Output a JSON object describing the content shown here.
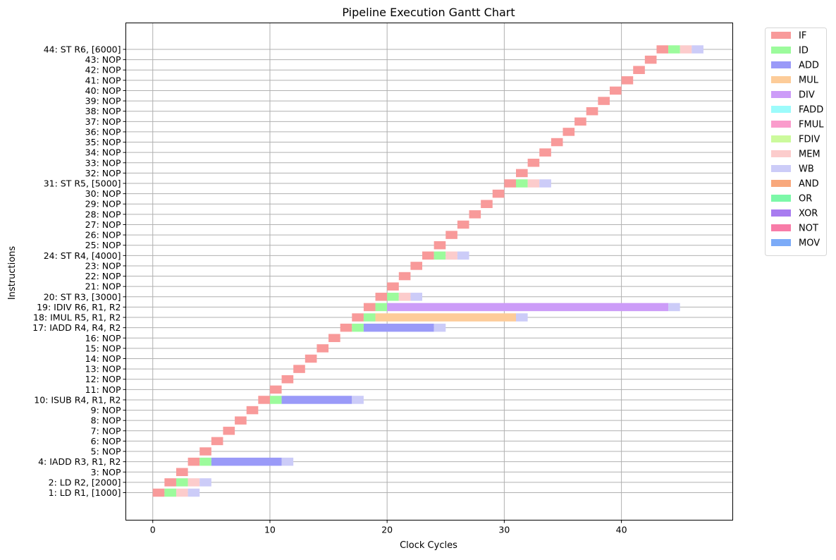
{
  "chart_data": {
    "type": "gantt",
    "title": "Pipeline Execution Gantt Chart",
    "xlabel": "Clock Cycles",
    "ylabel": "Instructions",
    "xlim": [
      -2.3,
      49.5
    ],
    "xticks": [
      0,
      10,
      20,
      30,
      40
    ],
    "grid": true,
    "legend_position": "outside-top-right",
    "stages": [
      {
        "name": "IF",
        "color": "#f89a9a"
      },
      {
        "name": "ID",
        "color": "#9cfb9c"
      },
      {
        "name": "ADD",
        "color": "#9a9af8"
      },
      {
        "name": "MUL",
        "color": "#fdcc99"
      },
      {
        "name": "DIV",
        "color": "#cc9cf8"
      },
      {
        "name": "FADD",
        "color": "#9cfbfb"
      },
      {
        "name": "FMUL",
        "color": "#fa9ccc"
      },
      {
        "name": "FDIV",
        "color": "#ccfa9c"
      },
      {
        "name": "MEM",
        "color": "#fccccc"
      },
      {
        "name": "WB",
        "color": "#ccccf8"
      },
      {
        "name": "AND",
        "color": "#f8a87c"
      },
      {
        "name": "OR",
        "color": "#7cf8a8"
      },
      {
        "name": "XOR",
        "color": "#a87cf0"
      },
      {
        "name": "NOT",
        "color": "#f87ca8"
      },
      {
        "name": "MOV",
        "color": "#7cabf8"
      }
    ],
    "instructions": [
      {
        "label": "1: LD R1, [1000]",
        "segments": [
          [
            "IF",
            0,
            1
          ],
          [
            "ID",
            1,
            2
          ],
          [
            "MEM",
            2,
            3
          ],
          [
            "WB",
            3,
            4
          ]
        ]
      },
      {
        "label": "2: LD R2, [2000]",
        "segments": [
          [
            "IF",
            1,
            2
          ],
          [
            "ID",
            2,
            3
          ],
          [
            "MEM",
            3,
            4
          ],
          [
            "WB",
            4,
            5
          ]
        ]
      },
      {
        "label": "3: NOP",
        "segments": [
          [
            "IF",
            2,
            3
          ]
        ]
      },
      {
        "label": "4: IADD R3, R1, R2",
        "segments": [
          [
            "IF",
            3,
            4
          ],
          [
            "ID",
            4,
            5
          ],
          [
            "ADD",
            5,
            11
          ],
          [
            "WB",
            11,
            12
          ]
        ]
      },
      {
        "label": "5: NOP",
        "segments": [
          [
            "IF",
            4,
            5
          ]
        ]
      },
      {
        "label": "6: NOP",
        "segments": [
          [
            "IF",
            5,
            6
          ]
        ]
      },
      {
        "label": "7: NOP",
        "segments": [
          [
            "IF",
            6,
            7
          ]
        ]
      },
      {
        "label": "8: NOP",
        "segments": [
          [
            "IF",
            7,
            8
          ]
        ]
      },
      {
        "label": "9: NOP",
        "segments": [
          [
            "IF",
            8,
            9
          ]
        ]
      },
      {
        "label": "10: ISUB R4, R1, R2",
        "segments": [
          [
            "IF",
            9,
            10
          ],
          [
            "ID",
            10,
            11
          ],
          [
            "ADD",
            11,
            17
          ],
          [
            "WB",
            17,
            18
          ]
        ]
      },
      {
        "label": "11: NOP",
        "segments": [
          [
            "IF",
            10,
            11
          ]
        ]
      },
      {
        "label": "12: NOP",
        "segments": [
          [
            "IF",
            11,
            12
          ]
        ]
      },
      {
        "label": "13: NOP",
        "segments": [
          [
            "IF",
            12,
            13
          ]
        ]
      },
      {
        "label": "14: NOP",
        "segments": [
          [
            "IF",
            13,
            14
          ]
        ]
      },
      {
        "label": "15: NOP",
        "segments": [
          [
            "IF",
            14,
            15
          ]
        ]
      },
      {
        "label": "16: NOP",
        "segments": [
          [
            "IF",
            15,
            16
          ]
        ]
      },
      {
        "label": "17: IADD R4, R4, R2",
        "segments": [
          [
            "IF",
            16,
            17
          ],
          [
            "ID",
            17,
            18
          ],
          [
            "ADD",
            18,
            24
          ],
          [
            "WB",
            24,
            25
          ]
        ]
      },
      {
        "label": "18: IMUL R5, R1, R2",
        "segments": [
          [
            "IF",
            17,
            18
          ],
          [
            "ID",
            18,
            19
          ],
          [
            "MUL",
            19,
            31
          ],
          [
            "WB",
            31,
            32
          ]
        ]
      },
      {
        "label": "19: IDIV R6, R1, R2",
        "segments": [
          [
            "IF",
            18,
            19
          ],
          [
            "ID",
            19,
            20
          ],
          [
            "DIV",
            20,
            44
          ],
          [
            "WB",
            44,
            45
          ]
        ]
      },
      {
        "label": "20: ST R3, [3000]",
        "segments": [
          [
            "IF",
            19,
            20
          ],
          [
            "ID",
            20,
            21
          ],
          [
            "MEM",
            21,
            22
          ],
          [
            "WB",
            22,
            23
          ]
        ]
      },
      {
        "label": "21: NOP",
        "segments": [
          [
            "IF",
            20,
            21
          ]
        ]
      },
      {
        "label": "22: NOP",
        "segments": [
          [
            "IF",
            21,
            22
          ]
        ]
      },
      {
        "label": "23: NOP",
        "segments": [
          [
            "IF",
            22,
            23
          ]
        ]
      },
      {
        "label": "24: ST R4, [4000]",
        "segments": [
          [
            "IF",
            23,
            24
          ],
          [
            "ID",
            24,
            25
          ],
          [
            "MEM",
            25,
            26
          ],
          [
            "WB",
            26,
            27
          ]
        ]
      },
      {
        "label": "25: NOP",
        "segments": [
          [
            "IF",
            24,
            25
          ]
        ]
      },
      {
        "label": "26: NOP",
        "segments": [
          [
            "IF",
            25,
            26
          ]
        ]
      },
      {
        "label": "27: NOP",
        "segments": [
          [
            "IF",
            26,
            27
          ]
        ]
      },
      {
        "label": "28: NOP",
        "segments": [
          [
            "IF",
            27,
            28
          ]
        ]
      },
      {
        "label": "29: NOP",
        "segments": [
          [
            "IF",
            28,
            29
          ]
        ]
      },
      {
        "label": "30: NOP",
        "segments": [
          [
            "IF",
            29,
            30
          ]
        ]
      },
      {
        "label": "31: ST R5, [5000]",
        "segments": [
          [
            "IF",
            30,
            31
          ],
          [
            "ID",
            31,
            32
          ],
          [
            "MEM",
            32,
            33
          ],
          [
            "WB",
            33,
            34
          ]
        ]
      },
      {
        "label": "32: NOP",
        "segments": [
          [
            "IF",
            31,
            32
          ]
        ]
      },
      {
        "label": "33: NOP",
        "segments": [
          [
            "IF",
            32,
            33
          ]
        ]
      },
      {
        "label": "34: NOP",
        "segments": [
          [
            "IF",
            33,
            34
          ]
        ]
      },
      {
        "label": "35: NOP",
        "segments": [
          [
            "IF",
            34,
            35
          ]
        ]
      },
      {
        "label": "36: NOP",
        "segments": [
          [
            "IF",
            35,
            36
          ]
        ]
      },
      {
        "label": "37: NOP",
        "segments": [
          [
            "IF",
            36,
            37
          ]
        ]
      },
      {
        "label": "38: NOP",
        "segments": [
          [
            "IF",
            37,
            38
          ]
        ]
      },
      {
        "label": "39: NOP",
        "segments": [
          [
            "IF",
            38,
            39
          ]
        ]
      },
      {
        "label": "40: NOP",
        "segments": [
          [
            "IF",
            39,
            40
          ]
        ]
      },
      {
        "label": "41: NOP",
        "segments": [
          [
            "IF",
            40,
            41
          ]
        ]
      },
      {
        "label": "42: NOP",
        "segments": [
          [
            "IF",
            41,
            42
          ]
        ]
      },
      {
        "label": "43: NOP",
        "segments": [
          [
            "IF",
            42,
            43
          ]
        ]
      },
      {
        "label": "44: ST R6, [6000]",
        "segments": [
          [
            "IF",
            43,
            44
          ],
          [
            "ID",
            44,
            45
          ],
          [
            "MEM",
            45,
            46
          ],
          [
            "WB",
            46,
            47
          ]
        ]
      }
    ]
  }
}
